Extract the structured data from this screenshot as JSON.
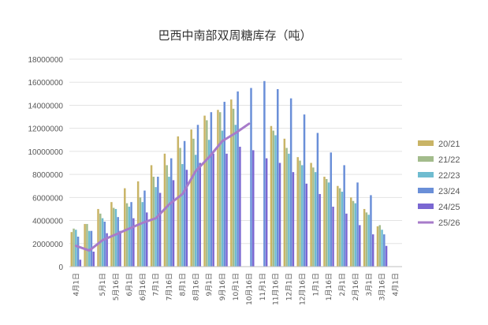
{
  "chart_data": {
    "type": "bar",
    "title": "巴西中南部双周糖库存（吨）",
    "xlabel": "",
    "ylabel": "",
    "ylim": [
      0,
      18000000
    ],
    "yticks": [
      0,
      2000000,
      4000000,
      6000000,
      8000000,
      10000000,
      12000000,
      14000000,
      16000000,
      18000000
    ],
    "ytick_labels": [
      "0",
      "2000000",
      "4000000",
      "6000000",
      "8000000",
      "10000000",
      "12000000",
      "14000000",
      "16000000",
      "18000000"
    ],
    "grid": true,
    "legend_position": "right",
    "categories": [
      "4月1日",
      "4月16日",
      "5月1日",
      "5月16日",
      "6月1日",
      "6月16日",
      "7月1日",
      "7月16日",
      "8月1日",
      "8月16日",
      "9月1日",
      "9月16日",
      "10月1日",
      "10月16日",
      "11月1日",
      "11月16日",
      "12月1日",
      "12月16日",
      "1月1日",
      "1月16日",
      "2月1日",
      "2月16日",
      "3月1日",
      "3月16日",
      "4月1日"
    ],
    "tick_labels": [
      "4月1日",
      "5月1日",
      "5月16日",
      "6月1日",
      "6月16日",
      "7月1日",
      "7月16日",
      "8月1日",
      "8月16日",
      "9月1日",
      "9月16日",
      "10月1日",
      "10月16日",
      "11月1日",
      "11月16日",
      "12月1日",
      "12月16日",
      "1月1日",
      "1月16日",
      "2月1日",
      "2月16日",
      "3月1日",
      "3月16日",
      "4月1日"
    ],
    "tick_label_categories": [
      0,
      2,
      3,
      4,
      5,
      6,
      7,
      8,
      9,
      10,
      11,
      12,
      13,
      14,
      15,
      16,
      17,
      18,
      19,
      20,
      21,
      22,
      23,
      24
    ],
    "series": [
      {
        "name": "20/21",
        "type": "bar",
        "color": "#C9B466",
        "values": [
          3000000,
          3700000,
          5000000,
          5600000,
          6800000,
          7400000,
          8800000,
          9800000,
          11300000,
          11900000,
          13100000,
          13600000,
          14500000,
          null,
          null,
          12200000,
          11100000,
          9500000,
          9000000,
          7800000,
          7000000,
          6000000,
          5000000,
          3500000,
          null
        ]
      },
      {
        "name": "21/22",
        "type": "bar",
        "color": "#A3BC8C",
        "values": [
          3300000,
          3700000,
          4600000,
          5100000,
          5500000,
          6000000,
          7800000,
          8800000,
          10300000,
          11100000,
          12700000,
          13400000,
          13700000,
          null,
          null,
          11800000,
          10300000,
          9200000,
          8600000,
          7600000,
          6800000,
          5700000,
          4700000,
          3600000,
          null
        ]
      },
      {
        "name": "22/23",
        "type": "bar",
        "color": "#6FBCD0",
        "values": [
          3200000,
          3100000,
          4200000,
          5000000,
          5200000,
          5600000,
          6900000,
          7800000,
          8900000,
          9700000,
          11000000,
          11800000,
          12300000,
          null,
          null,
          11400000,
          9800000,
          8800000,
          8200000,
          7300000,
          6500000,
          5500000,
          4500000,
          3200000,
          null
        ]
      },
      {
        "name": "23/24",
        "type": "bar",
        "color": "#6A8FD8",
        "values": [
          2600000,
          3100000,
          3900000,
          4300000,
          5600000,
          6600000,
          7800000,
          9400000,
          10900000,
          12300000,
          13400000,
          14300000,
          15200000,
          15500000,
          16100000,
          15400000,
          14600000,
          13200000,
          11600000,
          9900000,
          8800000,
          7300000,
          6200000,
          2800000,
          null
        ]
      },
      {
        "name": "24/25",
        "type": "bar",
        "color": "#7A67D2",
        "values": [
          600000,
          1300000,
          2900000,
          3100000,
          4200000,
          4700000,
          6400000,
          7500000,
          8400000,
          9000000,
          9800000,
          9800000,
          10400000,
          10100000,
          9400000,
          9000000,
          8200000,
          7200000,
          6300000,
          5200000,
          4600000,
          3600000,
          2800000,
          1800000,
          null
        ]
      },
      {
        "name": "25/26",
        "type": "line",
        "color": "#A77BCA",
        "values": [
          1800000,
          1400000,
          2300000,
          2800000,
          3300000,
          3800000,
          4200000,
          5400000,
          6300000,
          8300000,
          9500000,
          10900000,
          11600000,
          12400000,
          null,
          null,
          null,
          null,
          null,
          null,
          null,
          null,
          null,
          null,
          null
        ]
      }
    ]
  }
}
